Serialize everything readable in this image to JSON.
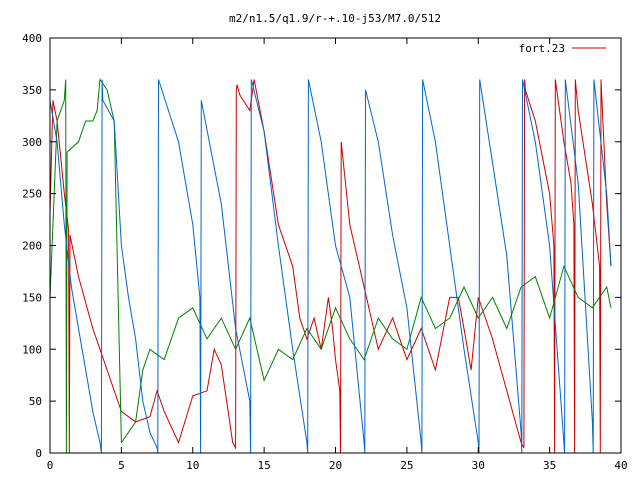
{
  "chart_data": {
    "type": "line",
    "title": "m2/n1.5/q1.9/r-+.10-j53/M7.0/512",
    "xlabel": "",
    "ylabel": "",
    "xlim": [
      0,
      40
    ],
    "ylim": [
      0,
      400
    ],
    "x_ticks": [
      "0",
      "5",
      "10",
      "15",
      "20",
      "25",
      "30",
      "35",
      "40"
    ],
    "y_ticks": [
      "0",
      "50",
      "100",
      "150",
      "200",
      "250",
      "300",
      "350",
      "400"
    ],
    "grid": false,
    "legend_position": "top-right",
    "series": [
      {
        "name": "fort.23",
        "color": "#cc0000",
        "x": [
          0.0,
          0.2,
          0.5,
          1.0,
          1.3,
          1.35,
          1.4,
          2.0,
          3.0,
          3.5,
          4.0,
          5.0,
          6.0,
          7.0,
          7.5,
          8.0,
          9.0,
          10.0,
          11.0,
          11.5,
          12.0,
          12.8,
          13.0,
          13.05,
          13.1,
          13.3,
          14.0,
          14.3,
          15.0,
          16.0,
          17.0,
          17.5,
          18.0,
          18.5,
          19.0,
          19.5,
          19.8,
          20.0,
          20.3,
          20.35,
          20.4,
          21.0,
          22.0,
          23.0,
          24.0,
          25.0,
          26.0,
          27.0,
          28.0,
          28.6,
          29.0,
          29.5,
          30.0,
          31.0,
          32.0,
          33.0,
          33.2,
          33.25,
          33.3,
          34.0,
          35.0,
          35.3,
          35.35,
          35.4,
          36.0,
          36.5,
          36.7,
          36.75,
          36.8,
          37.0,
          38.0,
          38.5,
          38.55,
          38.6,
          39.0,
          39.3
        ],
        "y": [
          230,
          340,
          320,
          250,
          215,
          0,
          210,
          170,
          120,
          100,
          80,
          40,
          30,
          35,
          60,
          40,
          10,
          55,
          60,
          100,
          85,
          10,
          5,
          350,
          355,
          345,
          330,
          360,
          310,
          220,
          180,
          130,
          110,
          130,
          100,
          150,
          120,
          90,
          60,
          0,
          300,
          220,
          160,
          100,
          130,
          90,
          120,
          80,
          150,
          150,
          120,
          80,
          150,
          110,
          60,
          10,
          5,
          360,
          350,
          320,
          250,
          200,
          0,
          360,
          300,
          260,
          220,
          0,
          360,
          330,
          240,
          180,
          0,
          360,
          240,
          180
        ]
      },
      {
        "name": "",
        "color": "#008000",
        "x": [
          0.0,
          0.5,
          1.0,
          1.1,
          1.15,
          1.2,
          2.0,
          2.5,
          3.0,
          3.3,
          3.5,
          4.0,
          4.5,
          5.0,
          5.5,
          6.0,
          6.5,
          7.0,
          8.0,
          9.0,
          10.0,
          11.0,
          12.0,
          13.0,
          14.0,
          15.0,
          16.0,
          17.0,
          18.0,
          19.0,
          20.0,
          21.0,
          22.0,
          23.0,
          24.0,
          25.0,
          26.0,
          27.0,
          28.0,
          29.0,
          30.0,
          31.0,
          32.0,
          33.0,
          34.0,
          35.0,
          36.0,
          37.0,
          38.0,
          39.0,
          39.3
        ],
        "y": [
          150,
          320,
          340,
          360,
          0,
          290,
          300,
          320,
          320,
          330,
          360,
          350,
          320,
          10,
          20,
          30,
          80,
          100,
          90,
          130,
          140,
          110,
          130,
          100,
          130,
          70,
          100,
          90,
          120,
          100,
          140,
          110,
          90,
          130,
          110,
          100,
          150,
          120,
          130,
          160,
          130,
          150,
          120,
          160,
          170,
          130,
          180,
          150,
          140,
          160,
          140
        ]
      },
      {
        "name": "",
        "color": "#0066cc",
        "x": [
          0.0,
          0.5,
          1.0,
          1.5,
          2.0,
          2.5,
          3.0,
          3.5,
          3.6,
          3.65,
          3.7,
          4.5,
          5.0,
          5.5,
          6.0,
          6.5,
          7.0,
          7.5,
          7.55,
          7.6,
          9.0,
          10.0,
          10.5,
          10.55,
          10.6,
          12.0,
          13.0,
          14.0,
          14.05,
          14.1,
          15.0,
          16.0,
          17.0,
          18.0,
          18.05,
          18.1,
          19.0,
          20.0,
          21.0,
          22.0,
          22.05,
          22.1,
          23.0,
          24.0,
          25.0,
          26.0,
          26.05,
          26.1,
          27.0,
          28.0,
          29.0,
          30.0,
          30.05,
          30.1,
          31.0,
          32.0,
          33.0,
          33.05,
          33.1,
          34.0,
          35.0,
          36.0,
          36.05,
          36.1,
          37.0,
          38.0,
          38.05,
          38.1,
          39.0,
          39.3
        ],
        "y": [
          340,
          300,
          220,
          160,
          120,
          80,
          40,
          10,
          0,
          360,
          340,
          320,
          200,
          150,
          110,
          50,
          20,
          5,
          0,
          360,
          300,
          220,
          150,
          0,
          340,
          240,
          120,
          50,
          0,
          360,
          310,
          200,
          100,
          10,
          0,
          360,
          300,
          200,
          150,
          10,
          0,
          350,
          300,
          210,
          140,
          10,
          0,
          360,
          300,
          200,
          100,
          10,
          0,
          360,
          280,
          190,
          20,
          0,
          360,
          300,
          200,
          10,
          0,
          360,
          260,
          30,
          0,
          360,
          250,
          180
        ]
      }
    ]
  }
}
